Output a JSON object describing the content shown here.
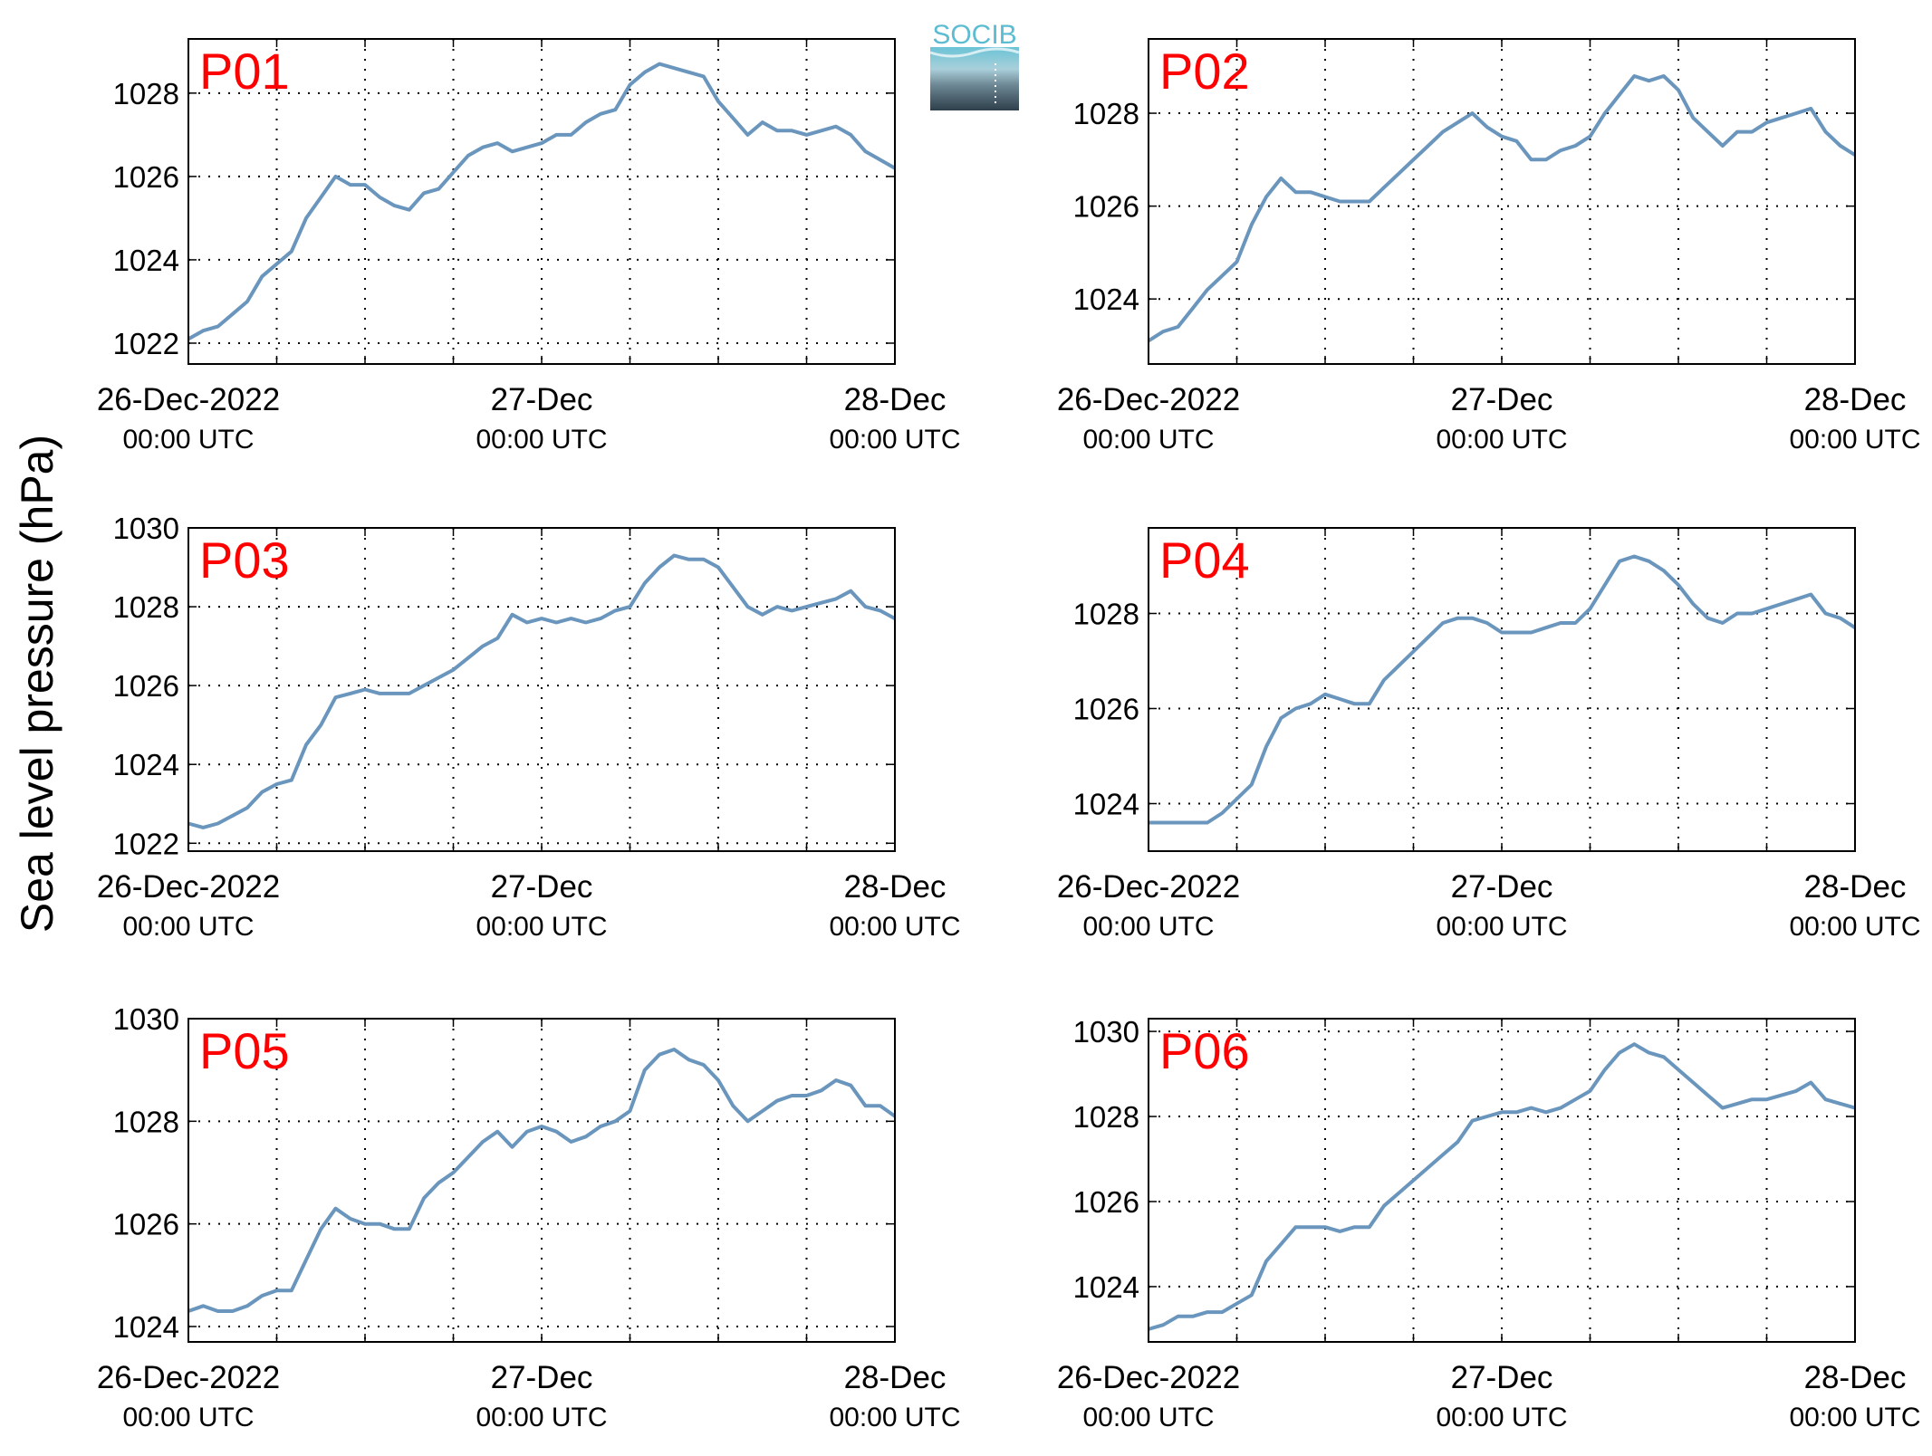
{
  "figure": {
    "ylabel": "Sea level pressure (hPa)",
    "logo_text": "SOCIB",
    "line_color": "#6a96bd",
    "label_color": "#ff0000",
    "x_tick_labels": [
      {
        "date": "26-Dec-2022",
        "time": "00:00 UTC"
      },
      {
        "date": "27-Dec",
        "time": "00:00 UTC"
      },
      {
        "date": "28-Dec",
        "time": "00:00 UTC"
      }
    ],
    "grid": "dotted"
  },
  "chart_data": [
    {
      "type": "line",
      "label": "P01",
      "xlim": [
        0,
        48
      ],
      "ylim": [
        1021.5,
        1029.3
      ],
      "yticks": [
        1022,
        1024,
        1026,
        1028
      ],
      "x": [
        0,
        1,
        2,
        3,
        4,
        5,
        6,
        7,
        8,
        9,
        10,
        11,
        12,
        13,
        14,
        15,
        16,
        17,
        18,
        19,
        20,
        21,
        22,
        23,
        24,
        25,
        26,
        27,
        28,
        29,
        30,
        31,
        32,
        33,
        34,
        35,
        36,
        37,
        38,
        39,
        40,
        41,
        42,
        43,
        44,
        45,
        46,
        47,
        48
      ],
      "values": [
        1022.1,
        1022.3,
        1022.4,
        1022.7,
        1023.0,
        1023.6,
        1023.9,
        1024.2,
        1025.0,
        1025.5,
        1026.0,
        1025.8,
        1025.8,
        1025.5,
        1025.3,
        1025.2,
        1025.6,
        1025.7,
        1026.1,
        1026.5,
        1026.7,
        1026.8,
        1026.6,
        1026.7,
        1026.8,
        1027.0,
        1027.0,
        1027.3,
        1027.5,
        1027.6,
        1028.2,
        1028.5,
        1028.7,
        1028.6,
        1028.5,
        1028.4,
        1027.8,
        1027.4,
        1027.0,
        1027.3,
        1027.1,
        1027.1,
        1027.0,
        1027.1,
        1027.2,
        1027.0,
        1026.6,
        1026.4,
        1026.2
      ]
    },
    {
      "type": "line",
      "label": "P02",
      "xlim": [
        0,
        48
      ],
      "ylim": [
        1022.6,
        1029.6
      ],
      "yticks": [
        1024,
        1026,
        1028
      ],
      "x": [
        0,
        1,
        2,
        3,
        4,
        5,
        6,
        7,
        8,
        9,
        10,
        11,
        12,
        13,
        14,
        15,
        16,
        17,
        18,
        19,
        20,
        21,
        22,
        23,
        24,
        25,
        26,
        27,
        28,
        29,
        30,
        31,
        32,
        33,
        34,
        35,
        36,
        37,
        38,
        39,
        40,
        41,
        42,
        43,
        44,
        45,
        46,
        47,
        48
      ],
      "values": [
        1023.1,
        1023.3,
        1023.4,
        1023.8,
        1024.2,
        1024.5,
        1024.8,
        1025.6,
        1026.2,
        1026.6,
        1026.3,
        1026.3,
        1026.2,
        1026.1,
        1026.1,
        1026.1,
        1026.4,
        1026.7,
        1027.0,
        1027.3,
        1027.6,
        1027.8,
        1028.0,
        1027.7,
        1027.5,
        1027.4,
        1027.0,
        1027.0,
        1027.2,
        1027.3,
        1027.5,
        1028.0,
        1028.4,
        1028.8,
        1028.7,
        1028.8,
        1028.5,
        1027.9,
        1027.6,
        1027.3,
        1027.6,
        1027.6,
        1027.8,
        1027.9,
        1028.0,
        1028.1,
        1027.6,
        1027.3,
        1027.1
      ]
    },
    {
      "type": "line",
      "label": "P03",
      "xlim": [
        0,
        48
      ],
      "ylim": [
        1021.8,
        1030.0
      ],
      "yticks": [
        1022,
        1024,
        1026,
        1028,
        1030
      ],
      "x": [
        0,
        1,
        2,
        3,
        4,
        5,
        6,
        7,
        8,
        9,
        10,
        11,
        12,
        13,
        14,
        15,
        16,
        17,
        18,
        19,
        20,
        21,
        22,
        23,
        24,
        25,
        26,
        27,
        28,
        29,
        30,
        31,
        32,
        33,
        34,
        35,
        36,
        37,
        38,
        39,
        40,
        41,
        42,
        43,
        44,
        45,
        46,
        47,
        48
      ],
      "values": [
        1022.5,
        1022.4,
        1022.5,
        1022.7,
        1022.9,
        1023.3,
        1023.5,
        1023.6,
        1024.5,
        1025.0,
        1025.7,
        1025.8,
        1025.9,
        1025.8,
        1025.8,
        1025.8,
        1026.0,
        1026.2,
        1026.4,
        1026.7,
        1027.0,
        1027.2,
        1027.8,
        1027.6,
        1027.7,
        1027.6,
        1027.7,
        1027.6,
        1027.7,
        1027.9,
        1028.0,
        1028.6,
        1029.0,
        1029.3,
        1029.2,
        1029.2,
        1029.0,
        1028.5,
        1028.0,
        1027.8,
        1028.0,
        1027.9,
        1028.0,
        1028.1,
        1028.2,
        1028.4,
        1028.0,
        1027.9,
        1027.7
      ]
    },
    {
      "type": "line",
      "label": "P04",
      "xlim": [
        0,
        48
      ],
      "ylim": [
        1023.0,
        1029.8
      ],
      "yticks": [
        1024,
        1026,
        1028
      ],
      "x": [
        0,
        1,
        2,
        3,
        4,
        5,
        6,
        7,
        8,
        9,
        10,
        11,
        12,
        13,
        14,
        15,
        16,
        17,
        18,
        19,
        20,
        21,
        22,
        23,
        24,
        25,
        26,
        27,
        28,
        29,
        30,
        31,
        32,
        33,
        34,
        35,
        36,
        37,
        38,
        39,
        40,
        41,
        42,
        43,
        44,
        45,
        46,
        47,
        48
      ],
      "values": [
        1023.6,
        1023.6,
        1023.6,
        1023.6,
        1023.6,
        1023.8,
        1024.1,
        1024.4,
        1025.2,
        1025.8,
        1026.0,
        1026.1,
        1026.3,
        1026.2,
        1026.1,
        1026.1,
        1026.6,
        1026.9,
        1027.2,
        1027.5,
        1027.8,
        1027.9,
        1027.9,
        1027.8,
        1027.6,
        1027.6,
        1027.6,
        1027.7,
        1027.8,
        1027.8,
        1028.1,
        1028.6,
        1029.1,
        1029.2,
        1029.1,
        1028.9,
        1028.6,
        1028.2,
        1027.9,
        1027.8,
        1028.0,
        1028.0,
        1028.1,
        1028.2,
        1028.3,
        1028.4,
        1028.0,
        1027.9,
        1027.7
      ]
    },
    {
      "type": "line",
      "label": "P05",
      "xlim": [
        0,
        48
      ],
      "ylim": [
        1023.7,
        1030.0
      ],
      "yticks": [
        1024,
        1026,
        1028,
        1030
      ],
      "x": [
        0,
        1,
        2,
        3,
        4,
        5,
        6,
        7,
        8,
        9,
        10,
        11,
        12,
        13,
        14,
        15,
        16,
        17,
        18,
        19,
        20,
        21,
        22,
        23,
        24,
        25,
        26,
        27,
        28,
        29,
        30,
        31,
        32,
        33,
        34,
        35,
        36,
        37,
        38,
        39,
        40,
        41,
        42,
        43,
        44,
        45,
        46,
        47,
        48
      ],
      "values": [
        1024.3,
        1024.4,
        1024.3,
        1024.3,
        1024.4,
        1024.6,
        1024.7,
        1024.7,
        1025.3,
        1025.9,
        1026.3,
        1026.1,
        1026.0,
        1026.0,
        1025.9,
        1025.9,
        1026.5,
        1026.8,
        1027.0,
        1027.3,
        1027.6,
        1027.8,
        1027.5,
        1027.8,
        1027.9,
        1027.8,
        1027.6,
        1027.7,
        1027.9,
        1028.0,
        1028.2,
        1029.0,
        1029.3,
        1029.4,
        1029.2,
        1029.1,
        1028.8,
        1028.3,
        1028.0,
        1028.2,
        1028.4,
        1028.5,
        1028.5,
        1028.6,
        1028.8,
        1028.7,
        1028.3,
        1028.3,
        1028.1
      ]
    },
    {
      "type": "line",
      "label": "P06",
      "xlim": [
        0,
        48
      ],
      "ylim": [
        1022.7,
        1030.3
      ],
      "yticks": [
        1024,
        1026,
        1028,
        1030
      ],
      "x": [
        0,
        1,
        2,
        3,
        4,
        5,
        6,
        7,
        8,
        9,
        10,
        11,
        12,
        13,
        14,
        15,
        16,
        17,
        18,
        19,
        20,
        21,
        22,
        23,
        24,
        25,
        26,
        27,
        28,
        29,
        30,
        31,
        32,
        33,
        34,
        35,
        36,
        37,
        38,
        39,
        40,
        41,
        42,
        43,
        44,
        45,
        46,
        47,
        48
      ],
      "values": [
        1023.0,
        1023.1,
        1023.3,
        1023.3,
        1023.4,
        1023.4,
        1023.6,
        1023.8,
        1024.6,
        1025.0,
        1025.4,
        1025.4,
        1025.4,
        1025.3,
        1025.4,
        1025.4,
        1025.9,
        1026.2,
        1026.5,
        1026.8,
        1027.1,
        1027.4,
        1027.9,
        1028.0,
        1028.1,
        1028.1,
        1028.2,
        1028.1,
        1028.2,
        1028.4,
        1028.6,
        1029.1,
        1029.5,
        1029.7,
        1029.5,
        1029.4,
        1029.1,
        1028.8,
        1028.5,
        1028.2,
        1028.3,
        1028.4,
        1028.4,
        1028.5,
        1028.6,
        1028.8,
        1028.4,
        1028.3,
        1028.2
      ]
    }
  ]
}
